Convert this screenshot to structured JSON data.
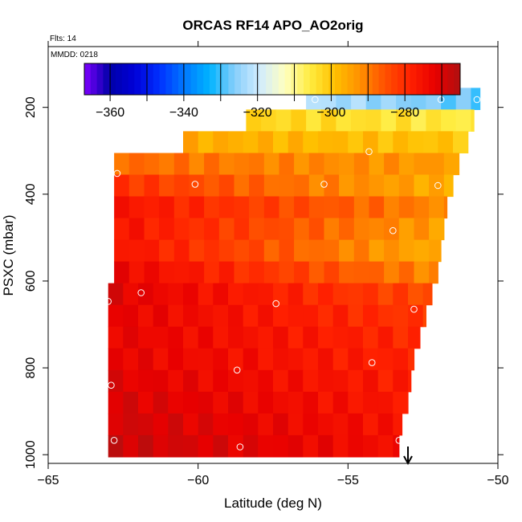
{
  "chart_data": {
    "type": "heatmap",
    "title": "ORCAS RF14 APO_AO2orig",
    "annotations": {
      "flights": "Flts: 14",
      "date": "MMDD: 0218"
    },
    "xlabel": "Latitude (deg N)",
    "ylabel": "PSXC (mbar)",
    "xlim": [
      -65,
      -50
    ],
    "ylim": [
      1020,
      60
    ],
    "x_ticks": [
      -65,
      -60,
      -55,
      -50
    ],
    "y_ticks": [
      200,
      400,
      600,
      800,
      1000
    ],
    "colorbar": {
      "range": [
        -367,
        -265
      ],
      "ticks": [
        -360,
        -340,
        -320,
        -300,
        -280
      ],
      "colors": [
        "#7f00ff",
        "#0000a8",
        "#0000d8",
        "#0030ff",
        "#0078ff",
        "#00b4ff",
        "#87cefa",
        "#d0ecff",
        "#ffffc0",
        "#ffec40",
        "#ffc000",
        "#ff9000",
        "#ff5000",
        "#ff2000",
        "#e80000",
        "#b01010"
      ]
    },
    "rows": [
      {
        "p": 180,
        "lat_min": -56.4,
        "lat_max": -50.6,
        "v_start": -322,
        "v_end": -329
      },
      {
        "p": 230,
        "lat_min": -58.4,
        "lat_max": -50.8,
        "v_start": -302,
        "v_end": -306
      },
      {
        "p": 280,
        "lat_min": -60.5,
        "lat_max": -51.0,
        "v_start": -296,
        "v_end": -300
      },
      {
        "p": 330,
        "lat_min": -62.8,
        "lat_max": -51.3,
        "v_start": -288,
        "v_end": -294
      },
      {
        "p": 380,
        "lat_min": -62.8,
        "lat_max": -51.5,
        "v_start": -281,
        "v_end": -297
      },
      {
        "p": 430,
        "lat_min": -62.8,
        "lat_max": -51.7,
        "v_start": -276,
        "v_end": -292
      },
      {
        "p": 480,
        "lat_min": -62.8,
        "lat_max": -51.8,
        "v_start": -276,
        "v_end": -295
      },
      {
        "p": 530,
        "lat_min": -62.8,
        "lat_max": -51.9,
        "v_start": -276,
        "v_end": -297
      },
      {
        "p": 580,
        "lat_min": -62.8,
        "lat_max": -52.0,
        "v_start": -273,
        "v_end": -292
      },
      {
        "p": 630,
        "lat_min": -63.0,
        "lat_max": -52.2,
        "v_start": -271,
        "v_end": -285
      },
      {
        "p": 680,
        "lat_min": -63.0,
        "lat_max": -52.4,
        "v_start": -272,
        "v_end": -282
      },
      {
        "p": 730,
        "lat_min": -63.0,
        "lat_max": -52.6,
        "v_start": -272,
        "v_end": -280
      },
      {
        "p": 780,
        "lat_min": -63.0,
        "lat_max": -52.8,
        "v_start": -272,
        "v_end": -279
      },
      {
        "p": 830,
        "lat_min": -63.0,
        "lat_max": -52.9,
        "v_start": -271,
        "v_end": -278
      },
      {
        "p": 880,
        "lat_min": -63.0,
        "lat_max": -53.0,
        "v_start": -270,
        "v_end": -277
      },
      {
        "p": 930,
        "lat_min": -63.0,
        "lat_max": -53.2,
        "v_start": -269,
        "v_end": -276
      },
      {
        "p": 980,
        "lat_min": -63.0,
        "lat_max": -53.3,
        "v_start": -268,
        "v_end": -275
      }
    ],
    "points": [
      {
        "lat": -56.1,
        "p": 182
      },
      {
        "lat": -51.9,
        "p": 182
      },
      {
        "lat": -50.7,
        "p": 182
      },
      {
        "lat": -54.3,
        "p": 302
      },
      {
        "lat": -62.7,
        "p": 352
      },
      {
        "lat": -60.1,
        "p": 377
      },
      {
        "lat": -55.8,
        "p": 377
      },
      {
        "lat": -52.0,
        "p": 380
      },
      {
        "lat": -53.5,
        "p": 484
      },
      {
        "lat": -61.9,
        "p": 627
      },
      {
        "lat": -63.0,
        "p": 647
      },
      {
        "lat": -57.4,
        "p": 652
      },
      {
        "lat": -52.8,
        "p": 665
      },
      {
        "lat": -54.2,
        "p": 788
      },
      {
        "lat": -58.7,
        "p": 805
      },
      {
        "lat": -62.9,
        "p": 840
      },
      {
        "lat": -62.8,
        "p": 967
      },
      {
        "lat": -53.3,
        "p": 967
      },
      {
        "lat": -58.6,
        "p": 982
      }
    ],
    "marker_arrow_lat": -53.0
  }
}
